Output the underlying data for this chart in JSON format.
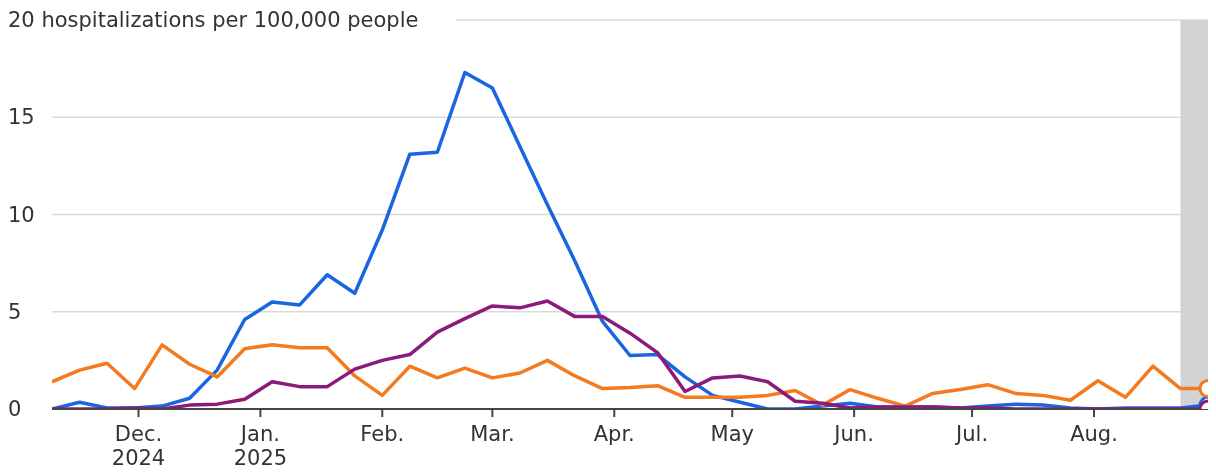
{
  "chart_data": {
    "type": "line",
    "x": [
      "2024-11-09",
      "2024-11-16",
      "2024-11-23",
      "2024-11-30",
      "2024-12-07",
      "2024-12-14",
      "2024-12-21",
      "2024-12-28",
      "2025-01-04",
      "2025-01-11",
      "2025-01-18",
      "2025-01-25",
      "2025-02-01",
      "2025-02-08",
      "2025-02-15",
      "2025-02-22",
      "2025-03-01",
      "2025-03-08",
      "2025-03-15",
      "2025-03-22",
      "2025-03-29",
      "2025-04-05",
      "2025-04-12",
      "2025-04-19",
      "2025-04-26",
      "2025-05-03",
      "2025-05-10",
      "2025-05-17",
      "2025-05-24",
      "2025-05-31",
      "2025-06-07",
      "2025-06-14",
      "2025-06-21",
      "2025-06-28",
      "2025-07-05",
      "2025-07-12",
      "2025-07-19",
      "2025-07-26",
      "2025-08-02",
      "2025-08-09",
      "2025-08-16",
      "2025-08-23",
      "2025-08-30"
    ],
    "series": [
      {
        "color": "#1a66e0",
        "values": [
          0,
          0.35,
          0.05,
          0.05,
          0.15,
          0.55,
          2.0,
          4.6,
          5.5,
          5.35,
          6.9,
          5.95,
          9.2,
          13.1,
          13.2,
          17.3,
          16.5,
          13.5,
          10.5,
          7.6,
          4.5,
          2.75,
          2.8,
          1.65,
          0.7,
          0.35,
          0,
          0,
          0.15,
          0.3,
          0.1,
          0.1,
          0.1,
          0.05,
          0.15,
          0.25,
          0.2,
          0.05,
          0,
          0.05,
          0.05,
          0.05,
          0.2
        ]
      },
      {
        "color": "#f47a20",
        "values": [
          1.4,
          2.0,
          2.35,
          1.05,
          3.3,
          2.3,
          1.65,
          3.1,
          3.3,
          3.15,
          3.15,
          1.7,
          0.7,
          2.2,
          1.6,
          2.1,
          1.6,
          1.85,
          2.5,
          1.7,
          1.05,
          1.1,
          1.2,
          0.6,
          0.6,
          0.6,
          0.7,
          0.95,
          0.2,
          1.0,
          0.55,
          0.15,
          0.8,
          1.0,
          1.25,
          0.8,
          0.7,
          0.45,
          1.45,
          0.6,
          2.2,
          1.05,
          1.05
        ]
      },
      {
        "color": "#8b1a7a",
        "values": [
          0,
          0,
          0,
          0.05,
          0,
          0.2,
          0.25,
          0.5,
          1.4,
          1.15,
          1.15,
          2.05,
          2.5,
          2.8,
          3.95,
          4.65,
          5.3,
          5.2,
          5.55,
          4.75,
          4.75,
          3.9,
          2.9,
          0.9,
          1.6,
          1.7,
          1.4,
          0.4,
          0.3,
          0.05,
          0.1,
          0.1,
          0.1,
          0.05,
          0.05,
          0,
          0,
          0,
          0,
          0,
          0,
          0,
          0
        ]
      }
    ],
    "xlim": [
      "2024-11-09",
      "2025-08-30"
    ],
    "xticks": [
      {
        "value": "2024-12-01",
        "label": "Dec. 2024"
      },
      {
        "value": "2025-01-01",
        "label": "Jan. 2025"
      },
      {
        "value": "2025-02-01",
        "label": "Feb."
      },
      {
        "value": "2025-03-01",
        "label": "Mar."
      },
      {
        "value": "2025-04-01",
        "label": "Apr."
      },
      {
        "value": "2025-05-01",
        "label": "May"
      },
      {
        "value": "2025-06-01",
        "label": "Jun."
      },
      {
        "value": "2025-07-01",
        "label": "Jul."
      },
      {
        "value": "2025-08-01",
        "label": "Aug."
      }
    ],
    "ylim": [
      0,
      20
    ],
    "yticks": [
      0,
      5,
      10,
      15,
      {
        "value": 20,
        "label": "20 hospitalizations per 100,000 people"
      }
    ],
    "bands": [
      {
        "axis": "x",
        "from": "2025-08-23",
        "to": "2025-08-30",
        "color": "#d3d3d3"
      }
    ],
    "grid": "y",
    "line_style": "solid"
  }
}
